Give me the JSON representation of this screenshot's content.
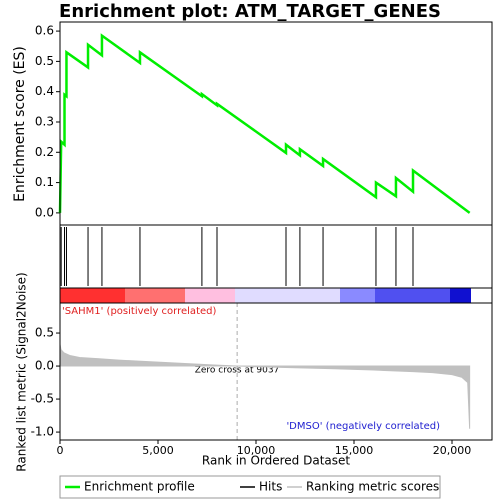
{
  "chart_data": [
    {
      "type": "line",
      "title": "Enrichment plot: ATM_TARGET_GENES",
      "ylabel": "Enrichment score (ES)",
      "color": "#00ee00",
      "x": [
        0,
        60,
        230,
        230,
        330,
        330,
        1430,
        1430,
        2140,
        2140,
        4080,
        4080,
        7240,
        7240,
        8010,
        8010,
        11530,
        11530,
        12240,
        12240,
        13420,
        13420,
        16120,
        16120,
        17140,
        17140,
        18010,
        18010,
        20900
      ],
      "values": [
        0,
        0.235,
        0.225,
        0.39,
        0.385,
        0.53,
        0.48,
        0.555,
        0.52,
        0.585,
        0.495,
        0.53,
        0.385,
        0.392,
        0.355,
        0.36,
        0.198,
        0.225,
        0.19,
        0.21,
        0.155,
        0.178,
        0.052,
        0.1,
        0.055,
        0.115,
        0.07,
        0.14,
        0
      ],
      "xlim": [
        0,
        22040
      ],
      "ylim": [
        -0.04,
        0.63
      ],
      "yticks": [
        {
          "value": 0,
          "label": "0.0"
        },
        0.1,
        0.2,
        0.3,
        0.4,
        0.5,
        0.6
      ]
    },
    {
      "type": "hits",
      "color": "#000000",
      "x": [
        60,
        230,
        330,
        1430,
        2140,
        4080,
        7240,
        8010,
        11530,
        12240,
        13420,
        16120,
        17140,
        18010
      ],
      "xlim": [
        0,
        22040
      ]
    },
    {
      "type": "area",
      "xlabel": "Rank in Ordered Dataset",
      "ylabel": "Ranked list metric (Signal2Noise)",
      "color": "#c0c0c0",
      "x": [
        0,
        50,
        200,
        500,
        1000,
        2000,
        3000,
        4000,
        5000,
        6000,
        7000,
        8000,
        9037,
        10000,
        12000,
        14000,
        16000,
        18000,
        19000,
        20000,
        20500,
        20800,
        20900
      ],
      "values": [
        0.33,
        0.25,
        0.2,
        0.16,
        0.13,
        0.11,
        0.09,
        0.075,
        0.06,
        0.045,
        0.03,
        0.015,
        0,
        -0.01,
        -0.025,
        -0.04,
        -0.06,
        -0.085,
        -0.1,
        -0.13,
        -0.17,
        -0.25,
        -0.95
      ],
      "xlim": [
        0,
        22040
      ],
      "ylim": [
        -1.12,
        0.955
      ],
      "yticks": [
        0.5,
        {
          "value": 0,
          "label": "0.0"
        },
        -0.5,
        {
          "value": -1,
          "label": "-1.0"
        }
      ],
      "xticks": [
        0,
        {
          "value": 5000,
          "label": "5,000"
        },
        {
          "value": 10000,
          "label": "10,000"
        },
        {
          "value": 15000,
          "label": "15,000"
        },
        {
          "value": 20000,
          "label": "20,000"
        }
      ],
      "zero_cross": 9037,
      "annotations": [
        "'SAHM1' (positively correlated)",
        "Zero cross at 9037",
        "'DMSO' (negatively correlated)"
      ]
    }
  ],
  "legend": [
    {
      "name": "Enrichment profile",
      "color": "#00ee00"
    },
    {
      "name": "Hits",
      "color": "#000000"
    },
    {
      "name": "Ranking metric scores",
      "color": "#c0c0c0"
    }
  ]
}
